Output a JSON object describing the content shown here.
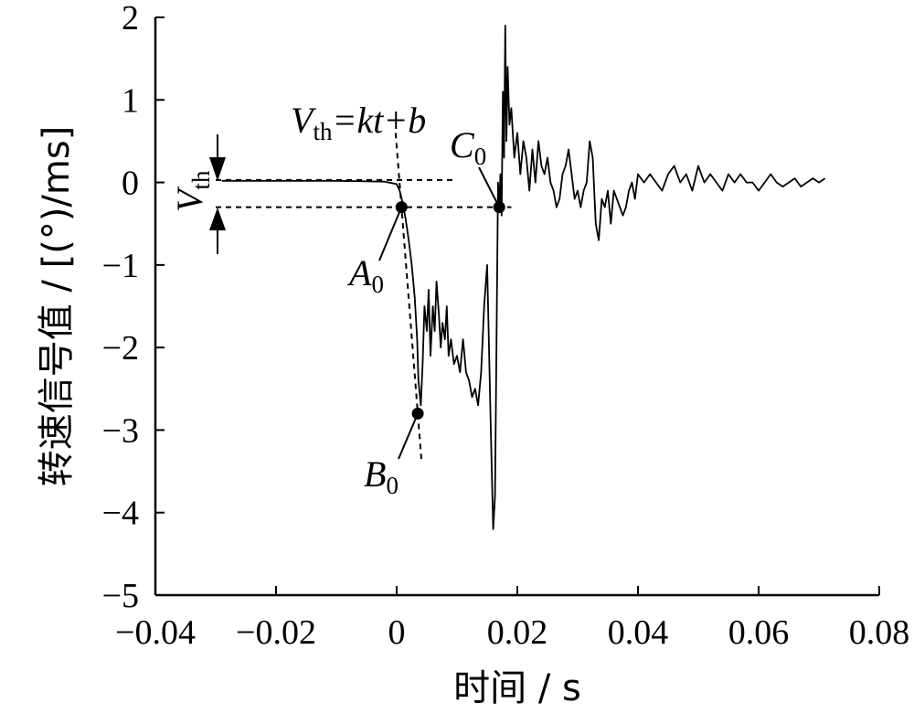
{
  "chart_data": {
    "type": "line",
    "xlabel": "时间 / s",
    "ylabel": "转速信号值 / [(°)/ms]",
    "xlim": [
      -0.04,
      0.08
    ],
    "ylim": [
      -5,
      2
    ],
    "xticks": [
      -0.04,
      -0.02,
      0,
      0.02,
      0.04,
      0.06,
      0.08
    ],
    "xtick_labels": [
      "−0.04",
      "−0.02",
      "0",
      "0.02",
      "0.04",
      "0.06",
      "0.08"
    ],
    "yticks": [
      -5,
      -4,
      -3,
      -2,
      -1,
      0,
      1,
      2
    ],
    "ytick_labels": [
      "−5",
      "−4",
      "−3",
      "−2",
      "−1",
      "0",
      "1",
      "2"
    ],
    "grid": false,
    "series": [
      {
        "x": [
          -0.029,
          -0.02,
          -0.01,
          -0.002,
          0.0,
          0.0005,
          0.001,
          0.0015,
          0.002,
          0.0025,
          0.003,
          0.0034,
          0.0036,
          0.004,
          0.0043,
          0.0046,
          0.005,
          0.0053,
          0.0056,
          0.006,
          0.0063,
          0.0066,
          0.007,
          0.0073,
          0.0076,
          0.008,
          0.0083,
          0.0086,
          0.009,
          0.0095,
          0.01,
          0.0105,
          0.011,
          0.0115,
          0.012,
          0.0125,
          0.013,
          0.0135,
          0.014,
          0.0145,
          0.015,
          0.0153,
          0.0156,
          0.016,
          0.0163,
          0.0166,
          0.0168,
          0.017,
          0.0172,
          0.0174,
          0.0176,
          0.0178,
          0.018,
          0.0182,
          0.0184,
          0.0187,
          0.019,
          0.0195,
          0.02,
          0.0205,
          0.021,
          0.0215,
          0.022,
          0.0225,
          0.023,
          0.0235,
          0.024,
          0.0245,
          0.025,
          0.0255,
          0.026,
          0.0265,
          0.027,
          0.0275,
          0.028,
          0.0285,
          0.029,
          0.0295,
          0.03,
          0.0305,
          0.031,
          0.0315,
          0.032,
          0.0325,
          0.033,
          0.0335,
          0.034,
          0.0345,
          0.035,
          0.0355,
          0.036,
          0.0365,
          0.037,
          0.0375,
          0.038,
          0.0385,
          0.039,
          0.0395,
          0.04,
          0.041,
          0.042,
          0.043,
          0.044,
          0.045,
          0.046,
          0.047,
          0.048,
          0.049,
          0.05,
          0.051,
          0.052,
          0.053,
          0.054,
          0.055,
          0.056,
          0.057,
          0.058,
          0.059,
          0.06,
          0.061,
          0.062,
          0.063,
          0.064,
          0.065,
          0.066,
          0.067,
          0.068,
          0.069,
          0.07,
          0.071
        ],
        "y": [
          0.02,
          0.02,
          0.02,
          0.01,
          -0.02,
          -0.1,
          -0.25,
          -0.45,
          -0.7,
          -1.0,
          -1.4,
          -1.9,
          -2.4,
          -2.7,
          -2.2,
          -1.5,
          -1.8,
          -1.3,
          -2.1,
          -1.5,
          -1.8,
          -1.2,
          -1.6,
          -2.0,
          -1.7,
          -1.9,
          -1.5,
          -2.1,
          -1.9,
          -2.2,
          -2.1,
          -2.3,
          -1.9,
          -2.3,
          -2.4,
          -2.6,
          -2.5,
          -2.7,
          -2.3,
          -1.5,
          -1.0,
          -2.0,
          -3.0,
          -4.2,
          -3.8,
          -1.5,
          0.0,
          -0.3,
          0.1,
          -0.4,
          1.1,
          0.3,
          1.9,
          0.5,
          1.4,
          0.7,
          0.9,
          0.3,
          0.6,
          0.1,
          0.5,
          0.3,
          -0.1,
          0.4,
          0.0,
          0.5,
          0.2,
          0.1,
          0.3,
          0.0,
          -0.1,
          -0.3,
          -0.2,
          0.1,
          0.2,
          0.4,
          0.1,
          -0.2,
          -0.1,
          -0.3,
          -0.1,
          0.0,
          0.5,
          0.3,
          -0.5,
          -0.7,
          -0.2,
          -0.3,
          -0.1,
          -0.5,
          -0.1,
          -0.2,
          -0.3,
          -0.4,
          -0.3,
          -0.1,
          0.0,
          -0.2,
          0.1,
          0.0,
          0.1,
          0.0,
          -0.1,
          0.1,
          0.2,
          0.0,
          0.1,
          -0.1,
          0.2,
          0.0,
          0.1,
          0.0,
          -0.1,
          0.1,
          0.0,
          0.1,
          0.0,
          0.0,
          -0.1,
          0.0,
          0.1,
          0.0,
          -0.05,
          0.0,
          0.05,
          -0.05,
          0.0,
          0.05,
          0.0,
          0.05
        ]
      }
    ],
    "threshold_level": -0.3,
    "points": [
      {
        "label": "A",
        "sub": "0",
        "x": 0.0008,
        "y": -0.3
      },
      {
        "label": "B",
        "sub": "0",
        "x": 0.0035,
        "y": -2.8
      },
      {
        "label": "C",
        "sub": "0",
        "x": 0.017,
        "y": -0.3
      }
    ],
    "annotations": {
      "fit_line_text": "=kt+b",
      "fit_line_V": "V",
      "fit_line_sub": "th",
      "threshold_V": "V",
      "threshold_sub": "th"
    }
  }
}
